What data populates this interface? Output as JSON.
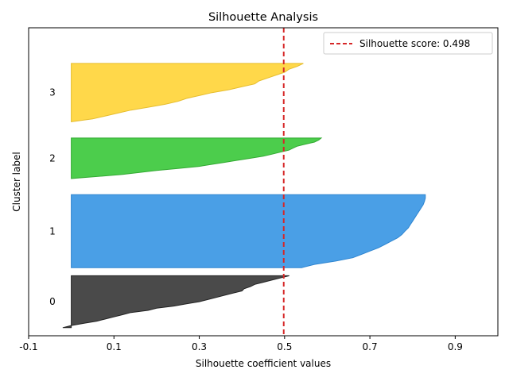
{
  "chart_data": {
    "type": "area",
    "title": "Silhouette Analysis",
    "xlabel": "Silhouette coefficient values",
    "ylabel": "Cluster label",
    "xlim": [
      -0.1,
      1.0
    ],
    "ylim": [
      0,
      380
    ],
    "xticks": [
      -0.1,
      0.1,
      0.3,
      0.5,
      0.7,
      0.9
    ],
    "xtick_labels": [
      "-0.1",
      "0.1",
      "0.3",
      "0.5",
      "0.7",
      "0.9"
    ],
    "grid": false,
    "legend_position": "top-right",
    "threshold": {
      "label": "Silhouette score: 0.498",
      "value": 0.498,
      "color": "#d62728",
      "style": "dashed"
    },
    "clusters": [
      {
        "label": "0",
        "color": "#4a4a4a",
        "edge": "#222222",
        "y_start": 10,
        "size": 64,
        "values": [
          0.511,
          0.49,
          0.47,
          0.45,
          0.43,
          0.42,
          0.405,
          0.4,
          0.38,
          0.36,
          0.34,
          0.32,
          0.3,
          0.27,
          0.24,
          0.2,
          0.18,
          0.14,
          0.12,
          0.1,
          0.08,
          0.06,
          0.03,
          0.0,
          -0.02
        ]
      },
      {
        "label": "1",
        "color": "#4a9fe6",
        "edge": "#2f85d0",
        "y_start": 84,
        "size": 90,
        "values": [
          0.83,
          0.83,
          0.828,
          0.825,
          0.82,
          0.815,
          0.81,
          0.805,
          0.8,
          0.795,
          0.79,
          0.782,
          0.775,
          0.765,
          0.75,
          0.735,
          0.72,
          0.7,
          0.68,
          0.66,
          0.62,
          0.57,
          0.54
        ]
      },
      {
        "label": "2",
        "color": "#4ccd4c",
        "edge": "#33aa33",
        "y_start": 194,
        "size": 50,
        "values": [
          0.586,
          0.58,
          0.57,
          0.55,
          0.53,
          0.52,
          0.51,
          0.49,
          0.47,
          0.45,
          0.42,
          0.39,
          0.36,
          0.33,
          0.3,
          0.25,
          0.2,
          0.16,
          0.12,
          0.06,
          0.0
        ]
      },
      {
        "label": "3",
        "color": "#ffd84a",
        "edge": "#e6bd2e",
        "y_start": 264,
        "size": 72,
        "values": [
          0.544,
          0.53,
          0.51,
          0.5,
          0.48,
          0.46,
          0.44,
          0.43,
          0.4,
          0.37,
          0.33,
          0.3,
          0.27,
          0.25,
          0.22,
          0.18,
          0.14,
          0.11,
          0.08,
          0.05,
          0.0
        ]
      }
    ]
  }
}
